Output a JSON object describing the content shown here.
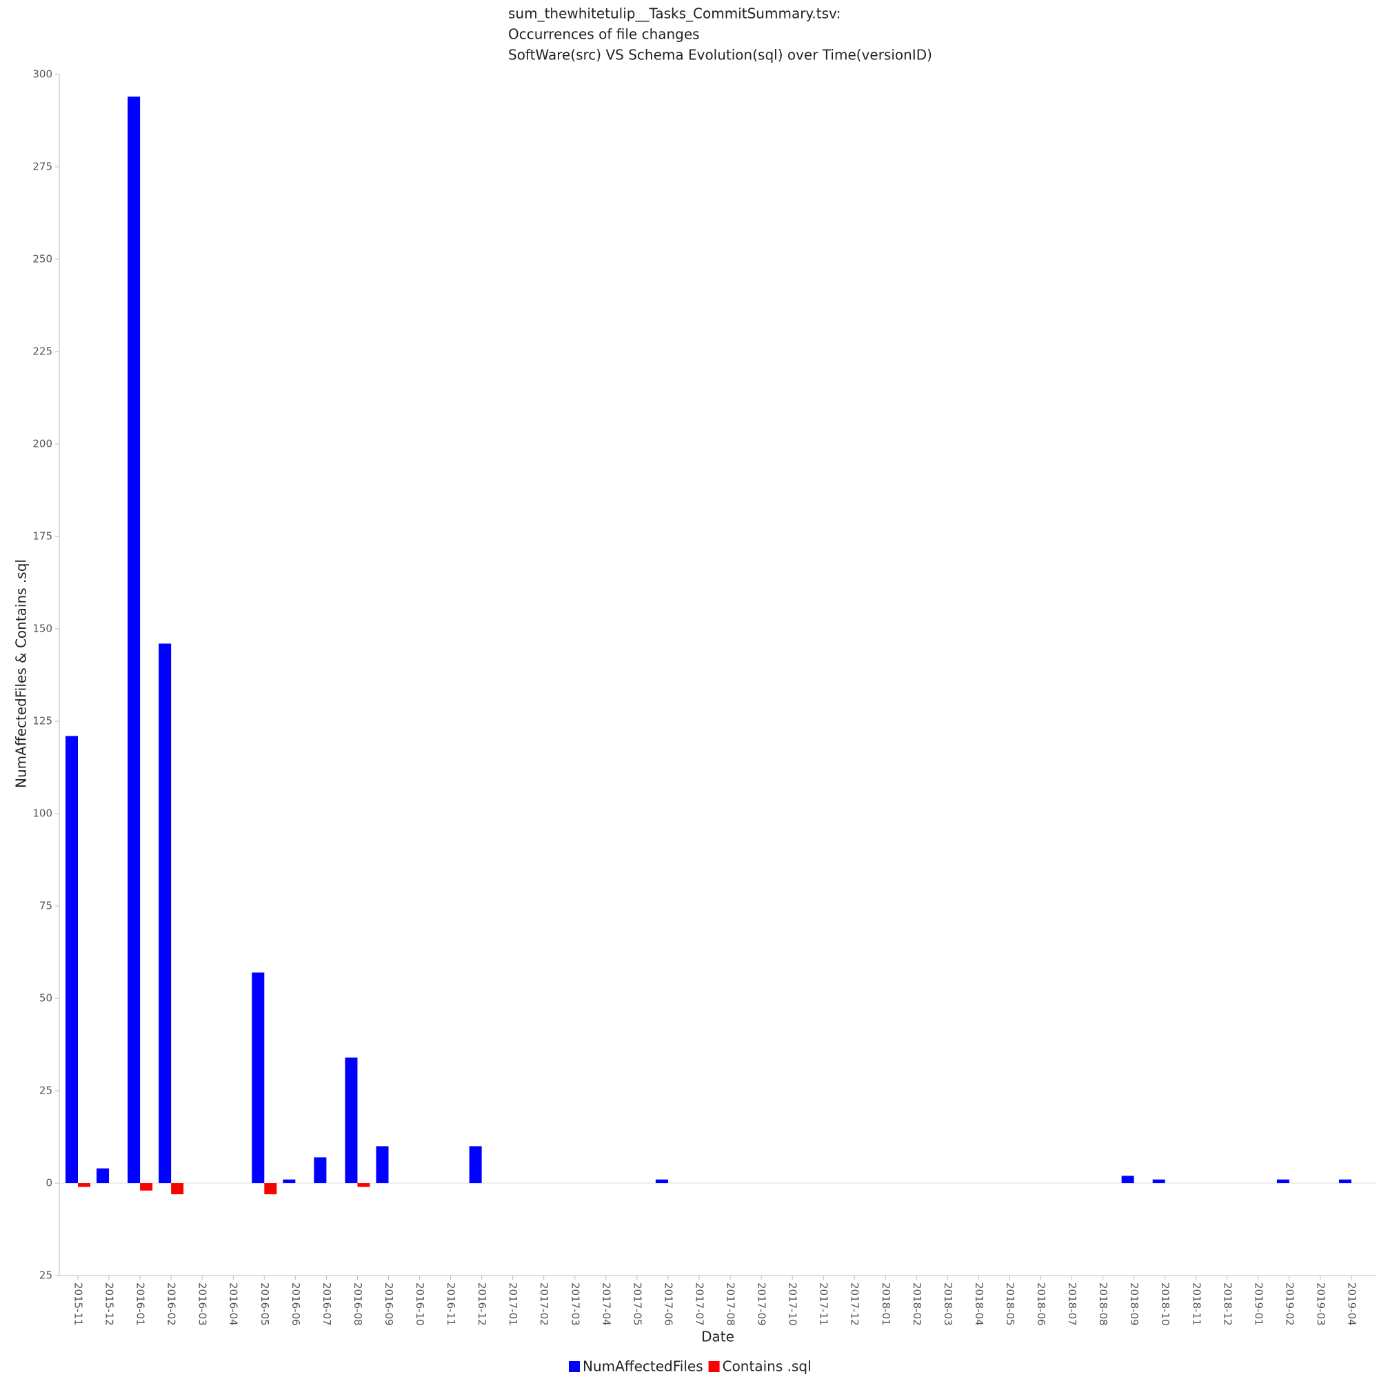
{
  "chart_data": {
    "type": "bar",
    "title": [
      "sum_thewhitetulip__Tasks_CommitSummary.tsv:",
      "Occurrences of file changes",
      "SoftWare(src) VS Schema Evolution(sql) over Time(versionID)"
    ],
    "x_label": "Date",
    "y_label": "NumAffectedFiles & Contains .sql",
    "categories": [
      "2015-11",
      "2015-12",
      "2016-01",
      "2016-02",
      "2016-03",
      "2016-04",
      "2016-05",
      "2016-06",
      "2016-07",
      "2016-08",
      "2016-09",
      "2016-10",
      "2016-11",
      "2016-12",
      "2017-01",
      "2017-02",
      "2017-03",
      "2017-04",
      "2017-05",
      "2017-06",
      "2017-07",
      "2017-08",
      "2017-09",
      "2017-10",
      "2017-11",
      "2017-12",
      "2018-01",
      "2018-02",
      "2018-03",
      "2018-04",
      "2018-05",
      "2018-06",
      "2018-07",
      "2018-08",
      "2018-09",
      "2018-10",
      "2018-11",
      "2018-12",
      "2019-01",
      "2019-02",
      "2019-03",
      "2019-04"
    ],
    "series": [
      {
        "name": "NumAffectedFiles",
        "color": "#0000ff",
        "values": [
          121,
          4,
          294,
          146,
          0,
          0,
          57,
          1,
          7,
          34,
          10,
          0,
          0,
          10,
          0,
          0,
          0,
          0,
          0,
          1,
          0,
          0,
          0,
          0,
          0,
          0,
          0,
          0,
          0,
          0,
          0,
          0,
          0,
          0,
          2,
          1,
          0,
          0,
          0,
          1,
          0,
          1
        ]
      },
      {
        "name": "Contains .sql",
        "color": "#ff0000",
        "values": [
          -1,
          0,
          -2,
          -3,
          0,
          0,
          -3,
          0,
          0,
          -1,
          0,
          0,
          0,
          0,
          0,
          0,
          0,
          0,
          0,
          0,
          0,
          0,
          0,
          0,
          0,
          0,
          0,
          0,
          0,
          0,
          0,
          0,
          0,
          0,
          0,
          0,
          0,
          0,
          0,
          0,
          0,
          0
        ]
      }
    ],
    "ylim": [
      -25,
      300
    ],
    "yticks": [
      {
        "value": -25,
        "label": "25"
      },
      0,
      25,
      50,
      75,
      100,
      125,
      150,
      175,
      200,
      225,
      250,
      275,
      300
    ]
  }
}
